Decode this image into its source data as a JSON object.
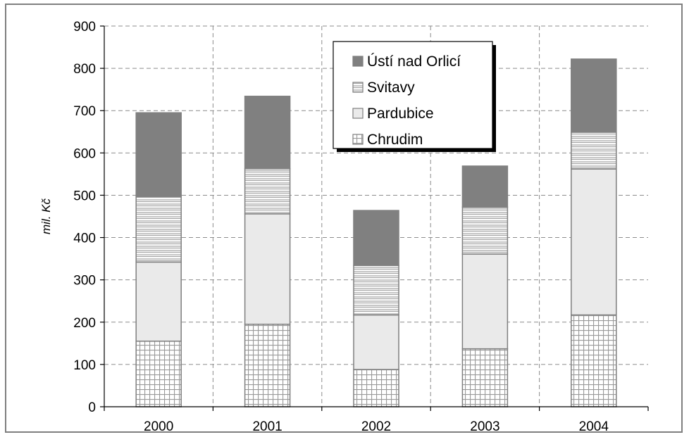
{
  "chart_data": {
    "type": "bar",
    "stacked": true,
    "title": "",
    "xlabel": "",
    "ylabel": "mil. Kč",
    "ylim": [
      0,
      900
    ],
    "yticks": [
      0,
      100,
      200,
      300,
      400,
      500,
      600,
      700,
      800,
      900
    ],
    "categories": [
      "2000",
      "2001",
      "2002",
      "2003",
      "2004"
    ],
    "grid": "dashed",
    "legend_position": "top-center",
    "series": [
      {
        "name": "Chrudim",
        "pattern": "grid",
        "color": "#ffffff",
        "values": [
          155,
          195,
          88,
          137,
          217
        ]
      },
      {
        "name": "Pardubice",
        "pattern": "solid",
        "color": "#eaeaea",
        "values": [
          187,
          261,
          129,
          224,
          345
        ]
      },
      {
        "name": "Svitavy",
        "pattern": "horizontal-lines",
        "color": "#ffffff",
        "values": [
          155,
          107,
          117,
          111,
          87
        ]
      },
      {
        "name": "Ústí nad Orlicí",
        "pattern": "solid",
        "color": "#808080",
        "values": [
          198,
          171,
          130,
          97,
          173
        ]
      }
    ],
    "legend_order": [
      "Ústí nad Orlicí",
      "Svitavy",
      "Pardubice",
      "Chrudim"
    ]
  }
}
